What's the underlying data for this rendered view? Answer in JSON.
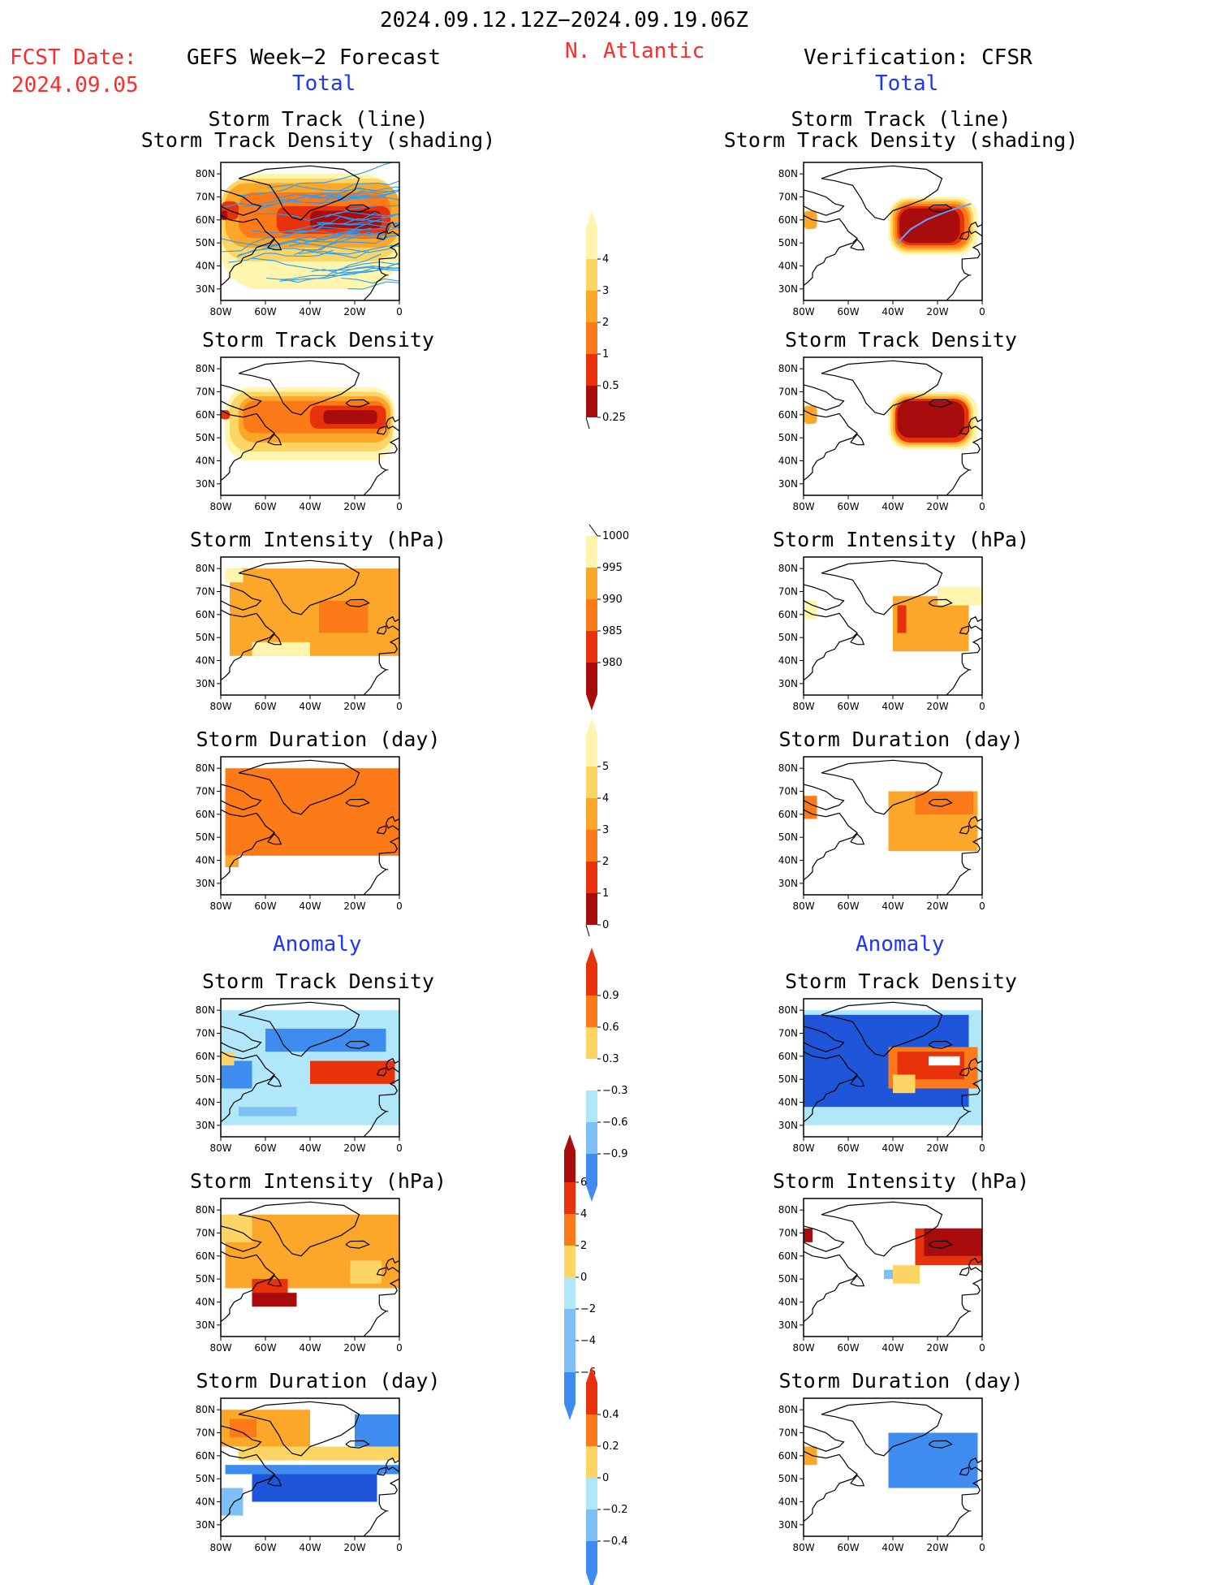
{
  "header": {
    "period": "2024.09.12.12Z−2024.09.19.06Z",
    "fcst_label": "FCST Date:",
    "fcst_date": "2024.09.05",
    "left_title": "GEFS Week−2 Forecast",
    "region": "N. Atlantic",
    "right_title": "Verification: CFSR",
    "total_left": "Total",
    "total_right": "Total",
    "anomaly_left": "Anomaly",
    "anomaly_right": "Anomaly"
  },
  "panel_titles": {
    "track_line": "Storm Track (line)",
    "track_density_shading": "Storm Track Density (shading)",
    "track_density": "Storm Track Density",
    "intensity": "Storm Intensity (hPa)",
    "duration": "Storm Duration (day)"
  },
  "map_axes": {
    "lon_ticks": [
      "80W",
      "60W",
      "40W",
      "20W",
      "0"
    ],
    "lat_ticks": [
      "80N",
      "70N",
      "60N",
      "50N",
      "40N",
      "30N"
    ],
    "lon_range": [
      -80,
      0
    ],
    "lat_range": [
      25,
      85
    ]
  },
  "colors": {
    "yellow_light": "#fff5ac",
    "yellow": "#fdd565",
    "orange_light": "#fca72a",
    "orange": "#fc7a17",
    "red": "#e8320c",
    "dark_red": "#a80c0c",
    "blue_light": "#b0e8fa",
    "blue_mid": "#7ec0f5",
    "blue": "#3f8cf0",
    "blue_dark": "#1f55d8",
    "track_forecast": "#2a9df4",
    "track_verif": "#6aa0ff"
  },
  "colorbars": [
    {
      "name": "track-density-total",
      "labels": [
        "4",
        "3",
        "2",
        "1",
        "0.5",
        "0.25"
      ]
    },
    {
      "name": "intensity-total",
      "labels": [
        "1000",
        "995",
        "990",
        "985",
        "980"
      ]
    },
    {
      "name": "duration-total",
      "labels": [
        "5",
        "4",
        "3",
        "2",
        "1",
        "0"
      ]
    },
    {
      "name": "track-density-anomaly",
      "labels": [
        "0.9",
        "0.6",
        "0.3",
        "−0.3",
        "−0.6",
        "−0.9"
      ]
    },
    {
      "name": "intensity-anomaly",
      "labels": [
        "6",
        "4",
        "2",
        "0",
        "−2",
        "−4",
        "−6"
      ]
    },
    {
      "name": "duration-anomaly",
      "labels": [
        "0.4",
        "0.2",
        "0",
        "−0.2",
        "−0.4"
      ]
    }
  ],
  "chart_data": [
    {
      "type": "heatmap",
      "column": "forecast",
      "row": 1,
      "title": "Storm Track (line) / Storm Track Density (shading)",
      "x_range": [
        -80,
        0
      ],
      "y_range": [
        25,
        85
      ],
      "regions": [
        {
          "lon": -80,
          "lat": 52,
          "w": 80,
          "h": 26,
          "level": 1
        },
        {
          "lon": -75,
          "lat": 56,
          "w": 70,
          "h": 18,
          "level": 2
        },
        {
          "lon": -32,
          "lat": 54,
          "w": 30,
          "h": 12,
          "level": 4
        },
        {
          "lon": -66,
          "lat": 58,
          "w": 20,
          "h": 12,
          "level": 3
        }
      ],
      "tracks": "ensemble storm tracks (blue lines)"
    },
    {
      "type": "heatmap",
      "column": "verification",
      "row": 1,
      "title": "Storm Track (line) / Storm Track Density (shading)",
      "regions": [
        {
          "lon": -40,
          "lat": 46,
          "w": 38,
          "h": 26,
          "level": 4
        }
      ],
      "track": [
        [
          -38,
          50
        ],
        [
          -32,
          56
        ],
        [
          -25,
          60
        ],
        [
          -15,
          64
        ],
        [
          -5,
          67
        ]
      ]
    },
    {
      "type": "heatmap",
      "column": "forecast",
      "row": 2,
      "title": "Storm Track Density"
    },
    {
      "type": "heatmap",
      "column": "verification",
      "row": 2,
      "title": "Storm Track Density"
    },
    {
      "type": "heatmap",
      "column": "forecast",
      "row": 3,
      "title": "Storm Intensity (hPa)"
    },
    {
      "type": "heatmap",
      "column": "verification",
      "row": 3,
      "title": "Storm Intensity (hPa)"
    },
    {
      "type": "heatmap",
      "column": "forecast",
      "row": 4,
      "title": "Storm Duration (day)"
    },
    {
      "type": "heatmap",
      "column": "verification",
      "row": 4,
      "title": "Storm Duration (day)"
    },
    {
      "type": "heatmap",
      "column": "forecast",
      "row": 5,
      "title": "Storm Track Density (anomaly)"
    },
    {
      "type": "heatmap",
      "column": "verification",
      "row": 5,
      "title": "Storm Track Density (anomaly)"
    },
    {
      "type": "heatmap",
      "column": "forecast",
      "row": 6,
      "title": "Storm Intensity (hPa) (anomaly)"
    },
    {
      "type": "heatmap",
      "column": "verification",
      "row": 6,
      "title": "Storm Intensity (hPa) (anomaly)"
    },
    {
      "type": "heatmap",
      "column": "forecast",
      "row": 7,
      "title": "Storm Duration (day) (anomaly)"
    },
    {
      "type": "heatmap",
      "column": "verification",
      "row": 7,
      "title": "Storm Duration (day) (anomaly)"
    }
  ]
}
